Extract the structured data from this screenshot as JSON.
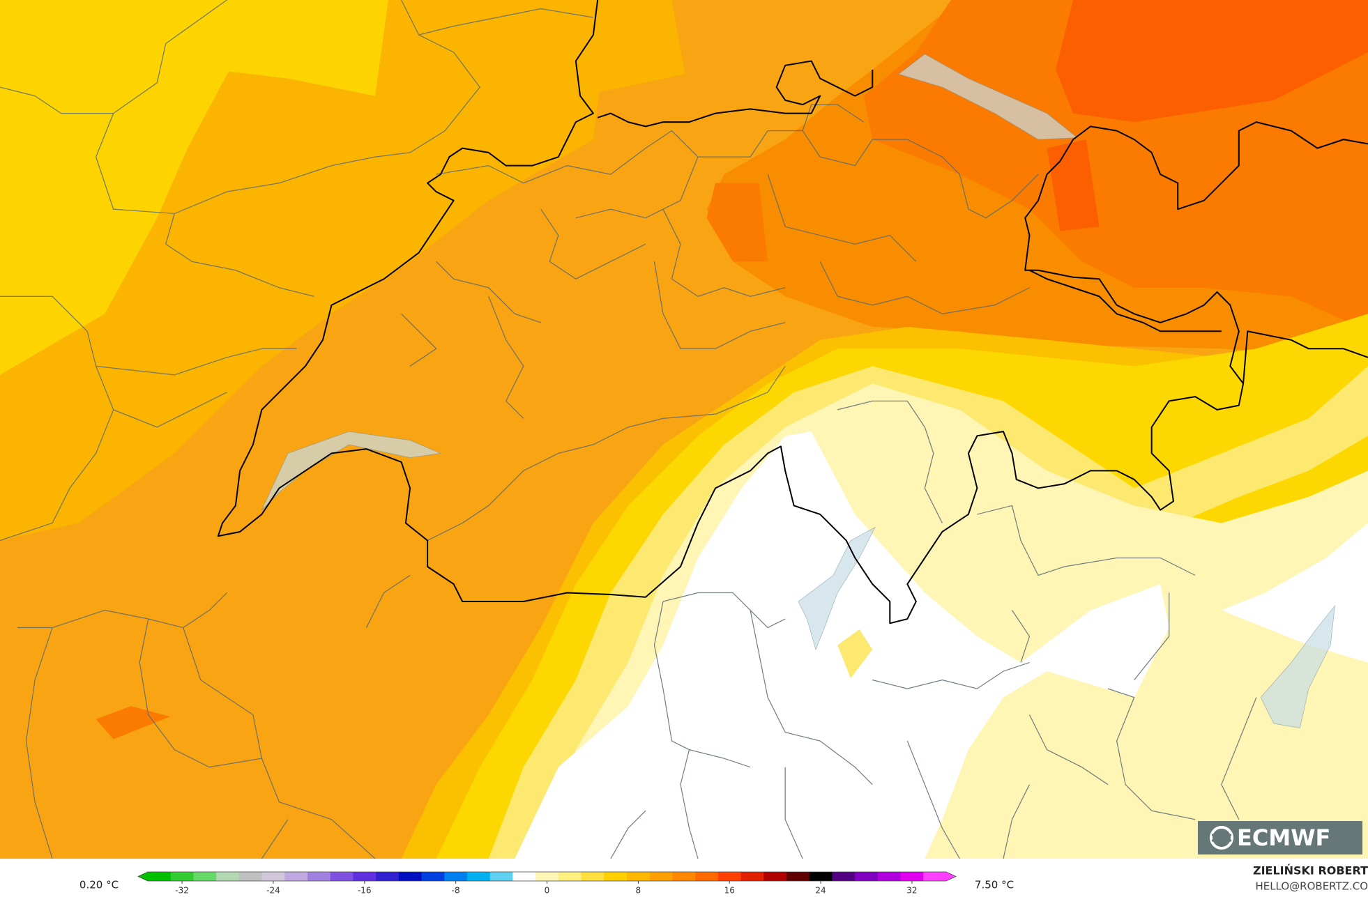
{
  "map": {
    "min_label": "0.20 °C",
    "max_label": "7.50 °C",
    "colorbar": {
      "clim": [
        -35,
        35
      ],
      "ticks": [
        -32,
        -24,
        -16,
        -8,
        0,
        8,
        16,
        24,
        32
      ],
      "colors": [
        "#00c000",
        "#33cc33",
        "#66d966",
        "#b3d9b3",
        "#c0c0c0",
        "#d0c8d8",
        "#c0a8e0",
        "#a080e0",
        "#8050e0",
        "#6030e0",
        "#3020d0",
        "#0010c0",
        "#0040e0",
        "#0080f0",
        "#00b0f0",
        "#60d0f0",
        "#ffffff",
        "#fff5b5",
        "#fff080",
        "#ffe040",
        "#ffd000",
        "#ffb800",
        "#ffa000",
        "#ff8800",
        "#ff6a00",
        "#ff4000",
        "#e02000",
        "#b00000",
        "#600000",
        "#000000",
        "#500080",
        "#8000c0",
        "#b000e0",
        "#e000f0",
        "#ff40ff"
      ]
    },
    "credit": {
      "author": "ZIELIŃSKI ROBERT",
      "contact": "HELLO@ROBERTZ.CO"
    },
    "logo": "ECMWF"
  }
}
